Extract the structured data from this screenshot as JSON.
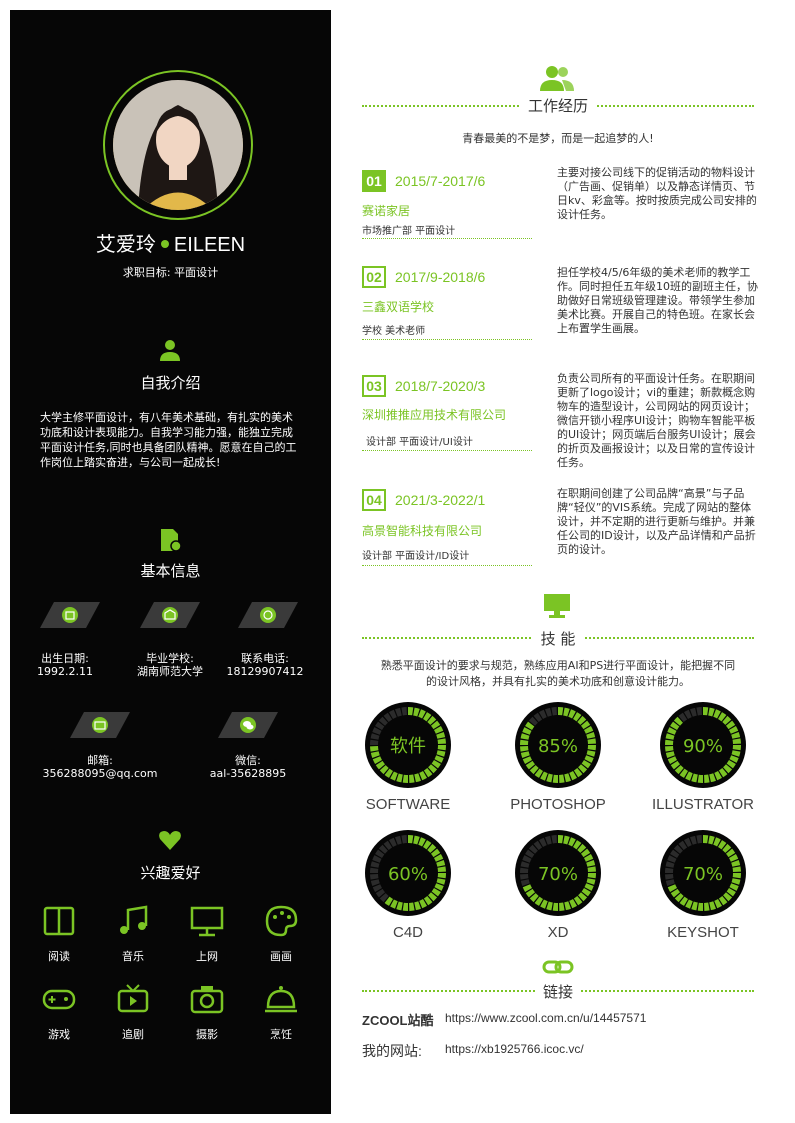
{
  "profile": {
    "name": "艾爱玲",
    "name_en": "EILEEN",
    "goal": "求职目标:  平面设计"
  },
  "sections": {
    "intro": "自我介绍",
    "basic": "基本信息",
    "hobbies": "兴趣爱好",
    "work": "工作经历",
    "skills": "技 能",
    "links": "链接"
  },
  "intro_text": "大学主修平面设计，有八年美术基础，有扎实的美术功底和设计表现能力。自我学习能力强，能独立完成平面设计任务,同时也具备团队精神。愿意在自己的工作岗位上踏实奋进，与公司一起成长!",
  "info": [
    {
      "label": "出生日期:",
      "value": "1992.2.11",
      "icon": "calendar-icon"
    },
    {
      "label": "毕业学校:",
      "value": "湖南师范大学",
      "icon": "school-icon"
    },
    {
      "label": "联系电话:",
      "value": "18129907412",
      "icon": "phone-icon"
    },
    {
      "label": "邮箱:",
      "value": "356288095@qq.com",
      "icon": "mail-icon"
    },
    {
      "label": "微信:",
      "value": "aal-35628895",
      "icon": "wechat-icon"
    }
  ],
  "hobbies": [
    "阅读",
    "音乐",
    "上网",
    "画画",
    "游戏",
    "追剧",
    "摄影",
    "烹饪"
  ],
  "slogan": "青春最美的不是梦，而是一起追梦的人!",
  "jobs": [
    {
      "num": "01",
      "date": "2015/7-2017/6",
      "company": "赛诺家居",
      "role": "市场推广部  平面设计",
      "desc": "主要对接公司线下的促销活动的物料设计（广告画、促销单）以及静态详情页、节日kv、彩盒等。按时按质完成公司安排的设计任务。"
    },
    {
      "num": "02",
      "date": "2017/9-2018/6",
      "company": "三鑫双语学校",
      "role": "学校    美术老师",
      "desc": "担任学校4/5/6年级的美术老师的教学工作。同时担任五年级10班的副班主任，协助做好日常班级管理建设。带领学生参加美术比赛。开展自己的特色班。在家长会上布置学生画展。"
    },
    {
      "num": "03",
      "date": "2018/7-2020/3",
      "company": "深圳推推应用技术有限公司",
      "role": "设计部  平面设计/UI设计",
      "desc": "负责公司所有的平面设计任务。在职期间更新了logo设计；vi的重建；新款概念购物车的造型设计，公司网站的网页设计；微信开锁小程序UI设计；购物车智能平板的UI设计；网页端后台服务UI设计；展会的折页及画报设计；以及日常的宣传设计任务。"
    },
    {
      "num": "04",
      "date": "2021/3-2022/1",
      "company": "高景智能科技有限公司",
      "role": "设计部  平面设计/ID设计",
      "desc": "在职期间创建了公司品牌“高景”与子品牌“轻仪”的VIS系统。完成了网站的整体设计，并不定期的进行更新与维护。并兼任公司的ID设计，以及产品详情和产品折页的设计。"
    }
  ],
  "skills_text_1": "熟悉平面设计的要求与规范，熟练应用AI和PS进行平面设计，能把握不同",
  "skills_text_2": "的设计风格，并具有扎实的美术功底和创意设计能力。",
  "skills": [
    {
      "label": "软件",
      "name": "SOFTWARE",
      "level": 75
    },
    {
      "label": "85%",
      "name": "PHOTOSHOP",
      "level": 85
    },
    {
      "label": "90%",
      "name": "ILLUSTRATOR",
      "level": 90
    },
    {
      "label": "60%",
      "name": "C4D",
      "level": 60
    },
    {
      "label": "70%",
      "name": "XD",
      "level": 70
    },
    {
      "label": "70%",
      "name": "KEYSHOT",
      "level": 70
    }
  ],
  "links": [
    {
      "label": "ZCOOL站酷",
      "url": "https://www.zcool.com.cn/u/14457571"
    },
    {
      "label": "我的网站:",
      "url": "https://xb1925766.icoc.vc/"
    }
  ],
  "colors": {
    "accent": "#7bc424",
    "sidebar": "#060606"
  }
}
